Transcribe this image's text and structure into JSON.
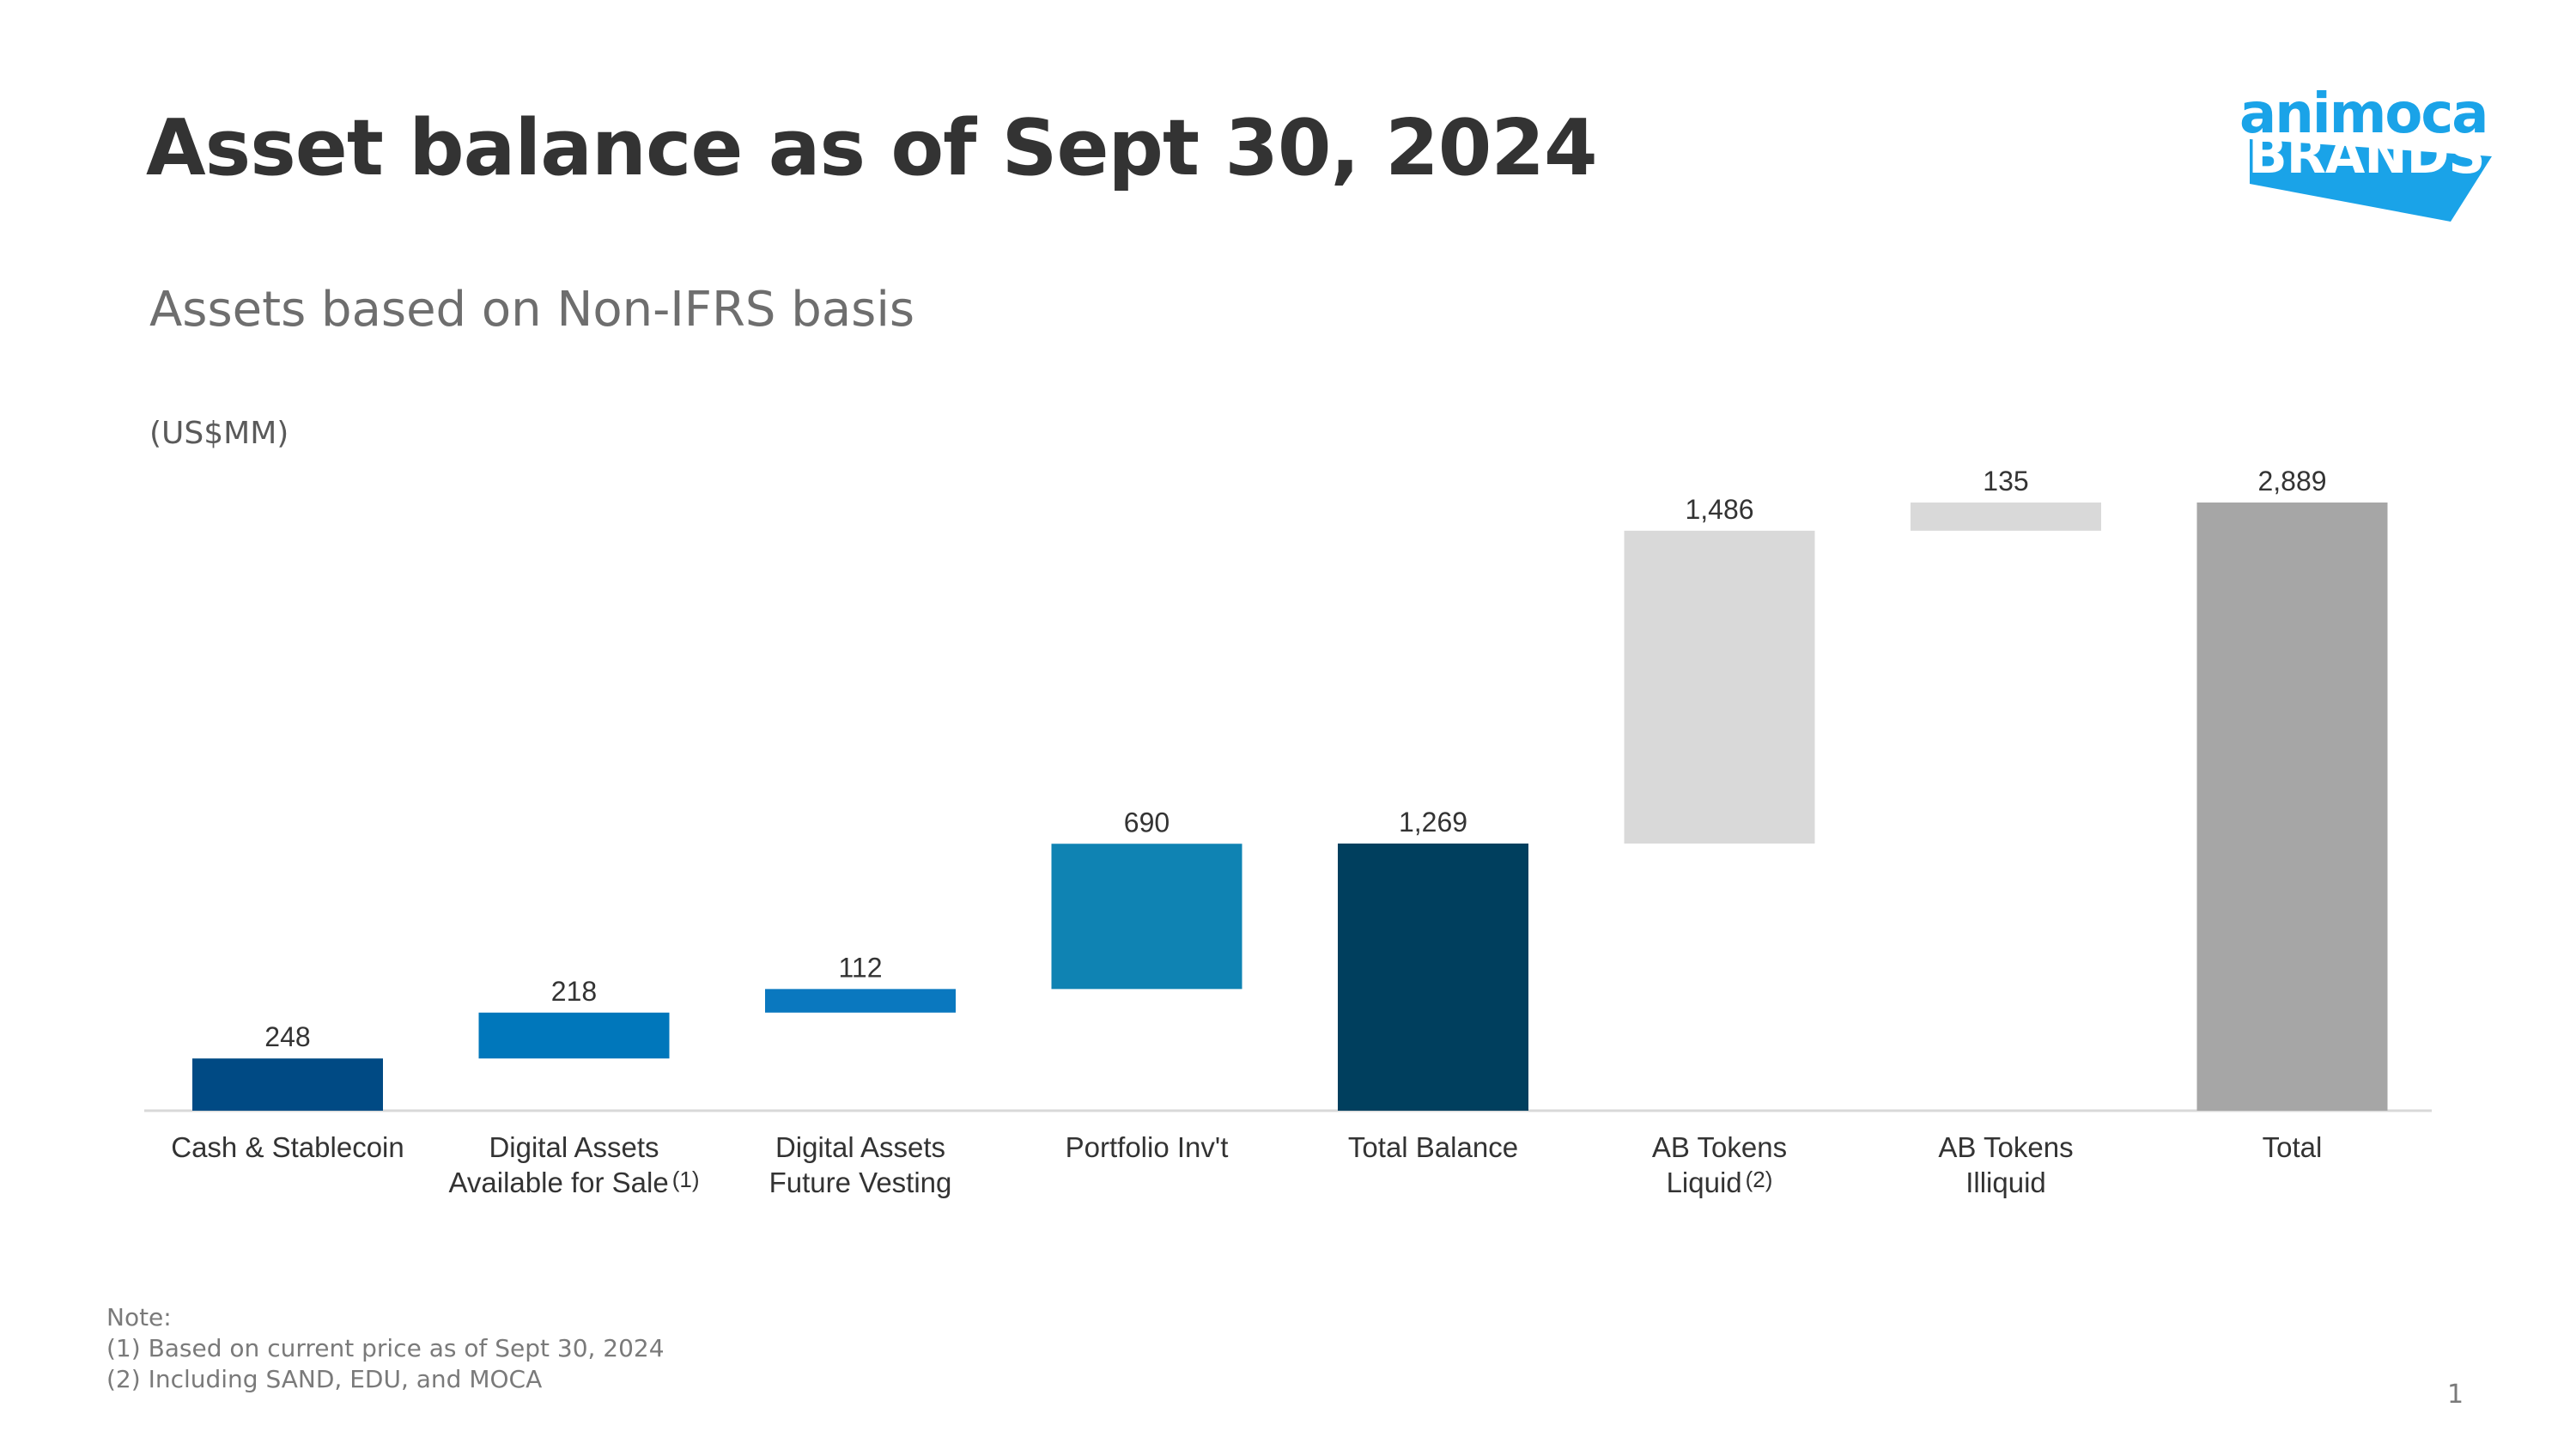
{
  "title": "Asset balance as of Sept 30, 2024",
  "subtitle": "Assets based on Non-IFRS basis",
  "unit_label": "(US$MM)",
  "logo": {
    "top": "animoca",
    "bottom": "BRANDS",
    "color": "#1aa3e8"
  },
  "chart_data": {
    "type": "bar",
    "subtype": "waterfall",
    "categories": [
      {
        "line1": "Cash & Stablecoin",
        "line2": "",
        "sup": ""
      },
      {
        "line1": "Digital Assets",
        "line2": "Available for Sale",
        "sup": "(1)"
      },
      {
        "line1": "Digital Assets",
        "line2": "Future Vesting",
        "sup": ""
      },
      {
        "line1": "Portfolio Inv't",
        "line2": "",
        "sup": ""
      },
      {
        "line1": "Total Balance",
        "line2": "",
        "sup": ""
      },
      {
        "line1": "AB Tokens",
        "line2": "Liquid",
        "sup": "(2)"
      },
      {
        "line1": "AB Tokens",
        "line2": "Illiquid",
        "sup": ""
      },
      {
        "line1": "Total",
        "line2": "",
        "sup": ""
      }
    ],
    "bars": [
      {
        "label": "248",
        "start": 0,
        "end": 248,
        "color": "#004a84"
      },
      {
        "label": "218",
        "start": 248,
        "end": 466,
        "color": "#0077bb"
      },
      {
        "label": "112",
        "start": 466,
        "end": 578,
        "color": "#0a78bf"
      },
      {
        "label": "690",
        "start": 578,
        "end": 1268,
        "color": "#0f83b3"
      },
      {
        "label": "1,269",
        "start": 0,
        "end": 1269,
        "color": "#003f5e"
      },
      {
        "label": "1,486",
        "start": 1269,
        "end": 2755,
        "color": "#d9d9d9"
      },
      {
        "label": "135",
        "start": 2755,
        "end": 2889,
        "color": "#d9d9d9"
      },
      {
        "label": "2,889",
        "start": 0,
        "end": 2889,
        "color": "#a6a6a6"
      }
    ],
    "ylim": [
      0,
      2889
    ]
  },
  "notes": {
    "heading": "Note:",
    "items": [
      "(1) Based on current price as of Sept 30, 2024",
      "(2) Including SAND, EDU, and MOCA"
    ]
  },
  "page_number": "1"
}
